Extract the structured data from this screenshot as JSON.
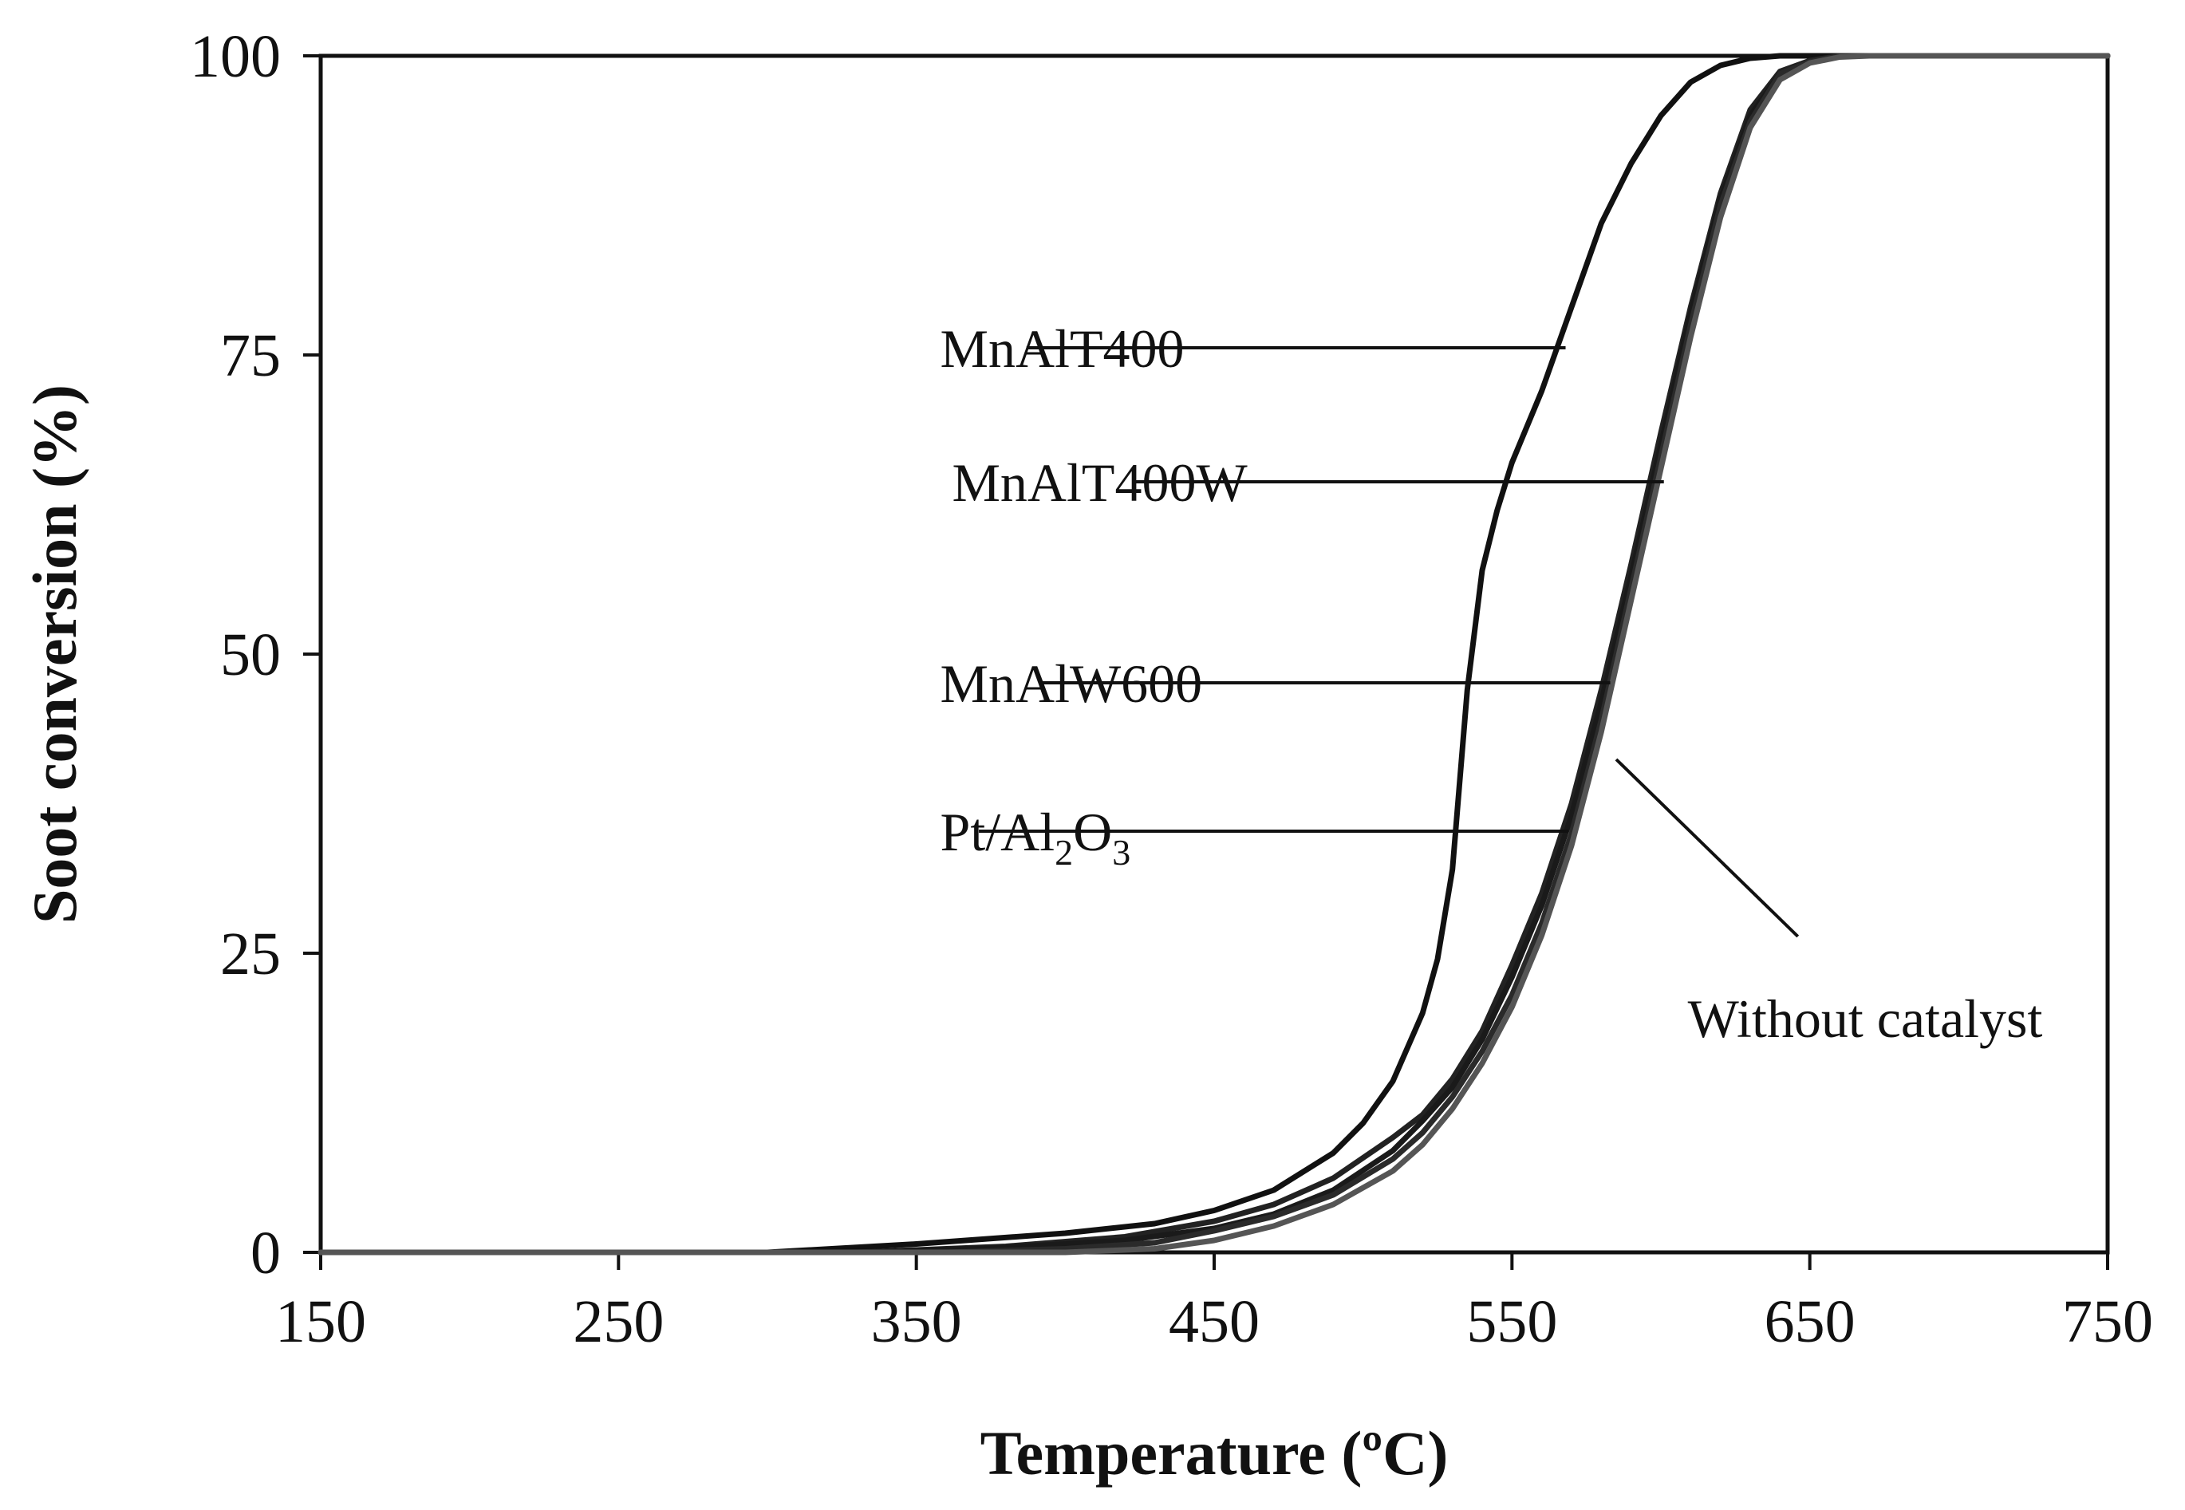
{
  "chart_data": {
    "type": "line",
    "title": "",
    "xlabel": "Temperature (ºC)",
    "ylabel": "Soot conversion (%)",
    "xlim": [
      150,
      750
    ],
    "ylim": [
      0,
      100
    ],
    "xticks": [
      150,
      250,
      350,
      450,
      550,
      650,
      750
    ],
    "yticks": [
      0,
      25,
      50,
      75,
      100
    ],
    "xtick_labels": [
      "150",
      "250",
      "350",
      "450",
      "550",
      "650",
      "750"
    ],
    "ytick_labels": [
      "0",
      "25",
      "50",
      "75",
      "100"
    ],
    "grid": false,
    "series": [
      {
        "name": "MnAlT400",
        "color": "#111111",
        "x": [
          150,
          300,
          350,
          400,
          430,
          450,
          470,
          490,
          500,
          510,
          520,
          525,
          530,
          535,
          540,
          545,
          550,
          560,
          570,
          580,
          590,
          600,
          610,
          620,
          630,
          640,
          750
        ],
        "y": [
          0,
          0,
          0.7,
          1.6,
          2.4,
          3.5,
          5.2,
          8.3,
          10.8,
          14.3,
          20,
          24.5,
          32,
          47,
          57,
          62,
          66,
          72,
          79,
          86,
          91,
          95,
          97.8,
          99.2,
          99.8,
          100,
          100
        ]
      },
      {
        "name": "MnAlT400W",
        "color": "#222222",
        "x": [
          150,
          330,
          380,
          420,
          450,
          470,
          490,
          510,
          520,
          530,
          540,
          550,
          560,
          570,
          580,
          590,
          600,
          610,
          620,
          630,
          640,
          650,
          660,
          750
        ],
        "y": [
          0,
          0,
          0.5,
          1.3,
          2.6,
          4,
          6.2,
          9.6,
          11.5,
          14.5,
          18.5,
          24,
          30,
          37.5,
          47,
          57.5,
          68.5,
          79,
          88.5,
          95.5,
          98.7,
          99.6,
          100,
          100
        ]
      },
      {
        "name": "MnAlW600",
        "color": "#1a1a1a",
        "x": [
          150,
          330,
          380,
          420,
          450,
          470,
          490,
          510,
          520,
          530,
          540,
          550,
          560,
          570,
          580,
          590,
          600,
          610,
          620,
          630,
          640,
          650,
          660,
          750
        ],
        "y": [
          0,
          0,
          0.4,
          1,
          2,
          3.2,
          5.2,
          8.5,
          11,
          13.8,
          17.8,
          23,
          29,
          36.5,
          46,
          56.5,
          67.5,
          78.5,
          88,
          95,
          98.5,
          99.5,
          100,
          100
        ]
      },
      {
        "name": "Pt/Al2O3",
        "color": "#2a2a2a",
        "x": [
          150,
          360,
          400,
          430,
          450,
          470,
          490,
          510,
          520,
          530,
          540,
          550,
          560,
          570,
          580,
          590,
          600,
          610,
          620,
          630,
          640,
          650,
          660,
          750
        ],
        "y": [
          0,
          0,
          0.3,
          0.8,
          1.8,
          3,
          4.8,
          7.8,
          10,
          13,
          16.8,
          21.5,
          27.5,
          35,
          44.5,
          55.5,
          66.5,
          77.5,
          87.5,
          94.5,
          98.5,
          99.5,
          100,
          100
        ]
      },
      {
        "name": "Without catalyst",
        "color": "#555555",
        "x": [
          150,
          400,
          430,
          450,
          470,
          490,
          510,
          520,
          530,
          540,
          550,
          560,
          570,
          580,
          590,
          600,
          610,
          620,
          630,
          640,
          650,
          660,
          670,
          750
        ],
        "y": [
          0,
          0,
          0.3,
          1,
          2.2,
          4,
          6.8,
          9,
          12,
          15.8,
          20.5,
          26.5,
          34,
          43.5,
          54.5,
          65.5,
          76.5,
          86.5,
          94,
          98,
          99.4,
          99.9,
          100,
          100
        ]
      }
    ],
    "annotations": [
      {
        "series": "MnAlT400",
        "text": "MnAlT400",
        "label_at": [
          358,
          75.6
        ],
        "line_from": [
          387,
          75.6
        ],
        "line_to": [
          568,
          75.6
        ]
      },
      {
        "series": "MnAlT400W",
        "text": "MnAlT400W",
        "label_at": [
          362,
          64.4
        ],
        "line_from": [
          423,
          64.4
        ],
        "line_to": [
          601,
          64.4
        ]
      },
      {
        "series": "MnAlW600",
        "text": "MnAlW600",
        "label_at": [
          358,
          47.6
        ],
        "line_from": [
          392,
          47.6
        ],
        "line_to": [
          583,
          47.6
        ]
      },
      {
        "series": "Pt/Al2O3",
        "text_main": "Pt/Al",
        "sub1": "2",
        "text_mid": "O",
        "sub2": "3",
        "label_at": [
          358,
          35.2
        ],
        "line_from": [
          371,
          35.2
        ],
        "line_to": [
          569,
          35.2
        ]
      },
      {
        "series": "Without catalyst",
        "text": "Without catalyst",
        "label_at": [
          609,
          19.6
        ],
        "line_from": [
          585,
          41.2
        ],
        "line_to": [
          646,
          26.4
        ]
      }
    ]
  }
}
